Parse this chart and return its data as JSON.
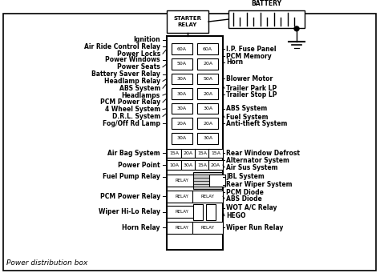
{
  "title": "Power distribution box",
  "bg_color": "#ffffff",
  "left_labels": [
    "Ignition",
    "Air Ride Control Relay",
    "Power Locks",
    "Power Windows",
    "Power Seats",
    "Battery Saver Relay",
    "Headlamp Relay",
    "ABS System",
    "Headlamps",
    "PCM Power Relay",
    "4 Wheel System",
    "D.R.L. System",
    "Fog/Off Rd Lamp",
    "Air Bag System",
    "Power Point",
    "Fuel Pump Relay",
    "PCM Power Relay",
    "Wiper Hi-Lo Relay",
    "Horn Relay"
  ],
  "right_labels": [
    "I.P. Fuse Panel",
    "PCM Memory",
    "Horn",
    "Blower Motor",
    "Trailer Park LP",
    "Trailer Stop LP",
    "ABS System",
    "Fuel System",
    "Anti-theft System",
    "Rear Window Defrost",
    "Alternator System",
    "Air Sus System",
    "JBL System",
    "Rear Wiper System",
    "PCM Diode",
    "ABS Diode",
    "WOT A/C Relay",
    "HEGO",
    "Wiper Run Relay"
  ],
  "fuse_rows_left": [
    "60A",
    "50A",
    "30A",
    "30A",
    "30A",
    "20A",
    "30A"
  ],
  "fuse_rows_right": [
    "60A",
    "20A",
    "50A",
    "20A",
    "30A",
    "20A",
    "30A"
  ],
  "small_row1": [
    "15A",
    "20A",
    "15A",
    "15A"
  ],
  "small_row2": [
    "10A",
    "30A",
    "15A",
    "20A"
  ],
  "relay_labels": [
    "RELAY",
    "RELAY",
    "RELAY",
    "RELAY",
    "RELAY",
    "RELAY"
  ]
}
